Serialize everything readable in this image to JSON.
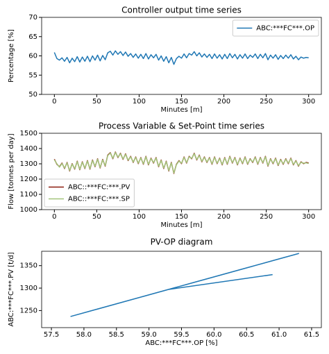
{
  "chart_data": [
    {
      "type": "line",
      "title": "Controller output time series",
      "xlabel": "Minutes [m]",
      "ylabel": "Percentage [%]",
      "x": [
        0,
        3,
        6,
        9,
        12,
        15,
        18,
        21,
        24,
        27,
        30,
        33,
        36,
        39,
        42,
        45,
        48,
        51,
        54,
        57,
        60,
        63,
        66,
        69,
        72,
        75,
        78,
        81,
        84,
        87,
        90,
        93,
        96,
        99,
        102,
        105,
        108,
        111,
        114,
        117,
        120,
        123,
        126,
        129,
        132,
        135,
        138,
        141,
        144,
        147,
        150,
        153,
        156,
        159,
        162,
        165,
        168,
        171,
        174,
        177,
        180,
        183,
        186,
        189,
        192,
        195,
        198,
        201,
        204,
        207,
        210,
        213,
        216,
        219,
        222,
        225,
        228,
        231,
        234,
        237,
        240,
        243,
        246,
        249,
        252,
        255,
        258,
        261,
        264,
        267,
        270,
        273,
        276,
        279,
        282,
        285,
        288,
        291,
        294,
        297,
        300
      ],
      "series": [
        {
          "name": "ABC:***FC***.OP",
          "color": "#1f77b4",
          "values": [
            60.9,
            59.3,
            58.9,
            59.5,
            58.6,
            59.6,
            58.2,
            59.4,
            58.5,
            59.8,
            58.4,
            59.7,
            58.6,
            59.9,
            58.5,
            60.0,
            58.9,
            60.2,
            58.7,
            60.1,
            59.0,
            60.8,
            61.2,
            60.2,
            61.3,
            60.4,
            61.1,
            60.1,
            61.0,
            59.9,
            60.6,
            59.6,
            60.5,
            59.4,
            60.4,
            59.3,
            60.6,
            59.2,
            60.3,
            59.5,
            60.4,
            58.9,
            60.0,
            58.6,
            59.8,
            58.2,
            59.6,
            57.8,
            59.3,
            59.9,
            59.4,
            60.5,
            59.5,
            60.6,
            60.2,
            61.1,
            60.0,
            60.8,
            59.7,
            60.5,
            59.6,
            60.4,
            59.3,
            60.5,
            59.4,
            60.3,
            59.2,
            60.4,
            59.3,
            60.6,
            59.5,
            60.4,
            59.2,
            60.3,
            59.4,
            60.5,
            59.3,
            60.2,
            59.6,
            60.5,
            59.3,
            60.4,
            59.5,
            60.6,
            59.0,
            60.2,
            59.4,
            60.3,
            59.1,
            60.1,
            59.3,
            60.2,
            59.4,
            60.3,
            59.2,
            59.9,
            59.0,
            59.7,
            59.4,
            59.6,
            59.5
          ]
        }
      ],
      "xlim": [
        -15,
        315
      ],
      "xticks": [
        0,
        50,
        100,
        150,
        200,
        250,
        300
      ],
      "ylim": [
        50,
        70
      ],
      "yticks": [
        50,
        55,
        60,
        65,
        70
      ],
      "legend": "upper right"
    },
    {
      "type": "line",
      "title": "Process Variable & Set-Point time series",
      "xlabel": "Minutes [m]",
      "ylabel": "Flow [tonnes per day]",
      "x": [
        0,
        3,
        6,
        9,
        12,
        15,
        18,
        21,
        24,
        27,
        30,
        33,
        36,
        39,
        42,
        45,
        48,
        51,
        54,
        57,
        60,
        63,
        66,
        69,
        72,
        75,
        78,
        81,
        84,
        87,
        90,
        93,
        96,
        99,
        102,
        105,
        108,
        111,
        114,
        117,
        120,
        123,
        126,
        129,
        132,
        135,
        138,
        141,
        144,
        147,
        150,
        153,
        156,
        159,
        162,
        165,
        168,
        171,
        174,
        177,
        180,
        183,
        186,
        189,
        192,
        195,
        198,
        201,
        204,
        207,
        210,
        213,
        216,
        219,
        222,
        225,
        228,
        231,
        234,
        237,
        240,
        243,
        246,
        249,
        252,
        255,
        258,
        261,
        264,
        267,
        270,
        273,
        276,
        279,
        282,
        285,
        288,
        291,
        294,
        297,
        300
      ],
      "series": [
        {
          "name": "ABC::***FC:***.PV",
          "color": "#8b1a0e",
          "values": [
            1330,
            1297,
            1281,
            1305,
            1269,
            1309,
            1253,
            1301,
            1265,
            1317,
            1261,
            1313,
            1269,
            1321,
            1265,
            1325,
            1281,
            1333,
            1273,
            1329,
            1285,
            1357,
            1373,
            1333,
            1377,
            1341,
            1369,
            1329,
            1365,
            1321,
            1349,
            1309,
            1345,
            1301,
            1341,
            1297,
            1349,
            1293,
            1337,
            1305,
            1341,
            1281,
            1325,
            1269,
            1317,
            1253,
            1309,
            1237,
            1297,
            1321,
            1301,
            1345,
            1305,
            1349,
            1333,
            1369,
            1325,
            1357,
            1313,
            1345,
            1309,
            1341,
            1297,
            1345,
            1301,
            1337,
            1293,
            1341,
            1297,
            1349,
            1305,
            1341,
            1293,
            1337,
            1301,
            1345,
            1297,
            1333,
            1309,
            1345,
            1297,
            1341,
            1305,
            1349,
            1285,
            1333,
            1301,
            1337,
            1289,
            1329,
            1297,
            1333,
            1301,
            1337,
            1293,
            1321,
            1285,
            1313,
            1301,
            1309,
            1305
          ]
        },
        {
          "name": "ABC::***FC:***.SP",
          "color": "#a3c47a",
          "values": [
            1326,
            1300,
            1278,
            1302,
            1272,
            1306,
            1256,
            1298,
            1268,
            1314,
            1264,
            1310,
            1272,
            1318,
            1268,
            1322,
            1284,
            1330,
            1276,
            1326,
            1288,
            1354,
            1370,
            1336,
            1374,
            1344,
            1366,
            1332,
            1362,
            1324,
            1346,
            1312,
            1342,
            1304,
            1338,
            1300,
            1346,
            1296,
            1334,
            1308,
            1338,
            1284,
            1322,
            1272,
            1314,
            1256,
            1306,
            1240,
            1294,
            1318,
            1304,
            1342,
            1308,
            1346,
            1336,
            1366,
            1328,
            1354,
            1316,
            1342,
            1312,
            1338,
            1300,
            1342,
            1304,
            1334,
            1296,
            1338,
            1300,
            1346,
            1308,
            1338,
            1296,
            1334,
            1304,
            1342,
            1300,
            1330,
            1312,
            1342,
            1300,
            1338,
            1308,
            1346,
            1288,
            1330,
            1304,
            1334,
            1292,
            1326,
            1300,
            1330,
            1304,
            1334,
            1296,
            1318,
            1288,
            1310,
            1304,
            1306,
            1302
          ]
        }
      ],
      "xlim": [
        -15,
        315
      ],
      "xticks": [
        0,
        50,
        100,
        150,
        200,
        250,
        300
      ],
      "ylim": [
        1000,
        1500
      ],
      "yticks": [
        1000,
        1100,
        1200,
        1300,
        1400,
        1500
      ],
      "legend": "lower left"
    },
    {
      "type": "line",
      "title": "PV-OP diagram",
      "xlabel": "ABC:***FC***.OP [%]",
      "ylabel": "ABC:***FC***.PV [t/d]",
      "x": [
        60.9,
        59.3,
        58.9,
        59.5,
        58.6,
        59.6,
        58.2,
        59.4,
        58.5,
        59.8,
        58.4,
        59.7,
        58.6,
        59.9,
        58.5,
        60.0,
        58.9,
        60.2,
        58.7,
        60.1,
        59.0,
        60.8,
        61.2,
        60.2,
        61.3,
        60.4,
        61.1,
        60.1,
        61.0,
        59.9,
        60.6,
        59.6,
        60.5,
        59.4,
        60.4,
        59.3,
        60.6,
        59.2,
        60.3,
        59.5,
        60.4,
        58.9,
        60.0,
        58.6,
        59.8,
        58.2,
        59.6,
        57.8,
        59.3,
        59.9,
        59.4,
        60.5,
        59.5,
        60.6,
        60.2,
        61.1,
        60.0,
        60.8,
        59.7,
        60.5,
        59.6,
        60.4,
        59.3,
        60.5,
        59.4,
        60.3,
        59.2,
        60.4,
        59.3,
        60.6,
        59.5,
        60.4,
        59.2,
        60.3,
        59.4,
        60.5,
        59.3,
        60.2,
        59.6,
        60.5,
        59.3,
        60.4,
        59.5,
        60.6,
        59.0,
        60.2,
        59.4,
        60.3,
        59.1,
        60.1,
        59.3,
        60.2,
        59.4,
        60.3,
        59.2,
        59.9,
        59.0,
        59.7,
        59.4,
        59.6,
        59.5
      ],
      "series": [
        {
          "color": "#1f77b4",
          "values": [
            1330,
            1297,
            1281,
            1305,
            1269,
            1309,
            1253,
            1301,
            1265,
            1317,
            1261,
            1313,
            1269,
            1321,
            1265,
            1325,
            1281,
            1333,
            1273,
            1329,
            1285,
            1357,
            1373,
            1333,
            1377,
            1341,
            1369,
            1329,
            1365,
            1321,
            1349,
            1309,
            1345,
            1301,
            1341,
            1297,
            1349,
            1293,
            1337,
            1305,
            1341,
            1281,
            1325,
            1269,
            1317,
            1253,
            1309,
            1237,
            1297,
            1321,
            1301,
            1345,
            1305,
            1349,
            1333,
            1369,
            1325,
            1357,
            1313,
            1345,
            1309,
            1341,
            1297,
            1345,
            1301,
            1337,
            1293,
            1341,
            1297,
            1349,
            1305,
            1341,
            1293,
            1337,
            1301,
            1345,
            1297,
            1333,
            1309,
            1345,
            1297,
            1341,
            1305,
            1349,
            1285,
            1333,
            1301,
            1337,
            1289,
            1329,
            1297,
            1333,
            1301,
            1337,
            1293,
            1321,
            1285,
            1313,
            1301,
            1309,
            1305
          ]
        }
      ],
      "xlim": [
        57.35,
        61.65
      ],
      "xticks": [
        57.5,
        {
          "value": 58,
          "label": "58.0"
        },
        58.5,
        {
          "value": 59,
          "label": "59.0"
        },
        59.5,
        {
          "value": 60,
          "label": "60.0"
        },
        60.5,
        {
          "value": 61,
          "label": "61.0"
        },
        61.5
      ],
      "ylim": [
        1212,
        1382
      ],
      "yticks": [
        1250,
        1300,
        1350
      ]
    }
  ]
}
